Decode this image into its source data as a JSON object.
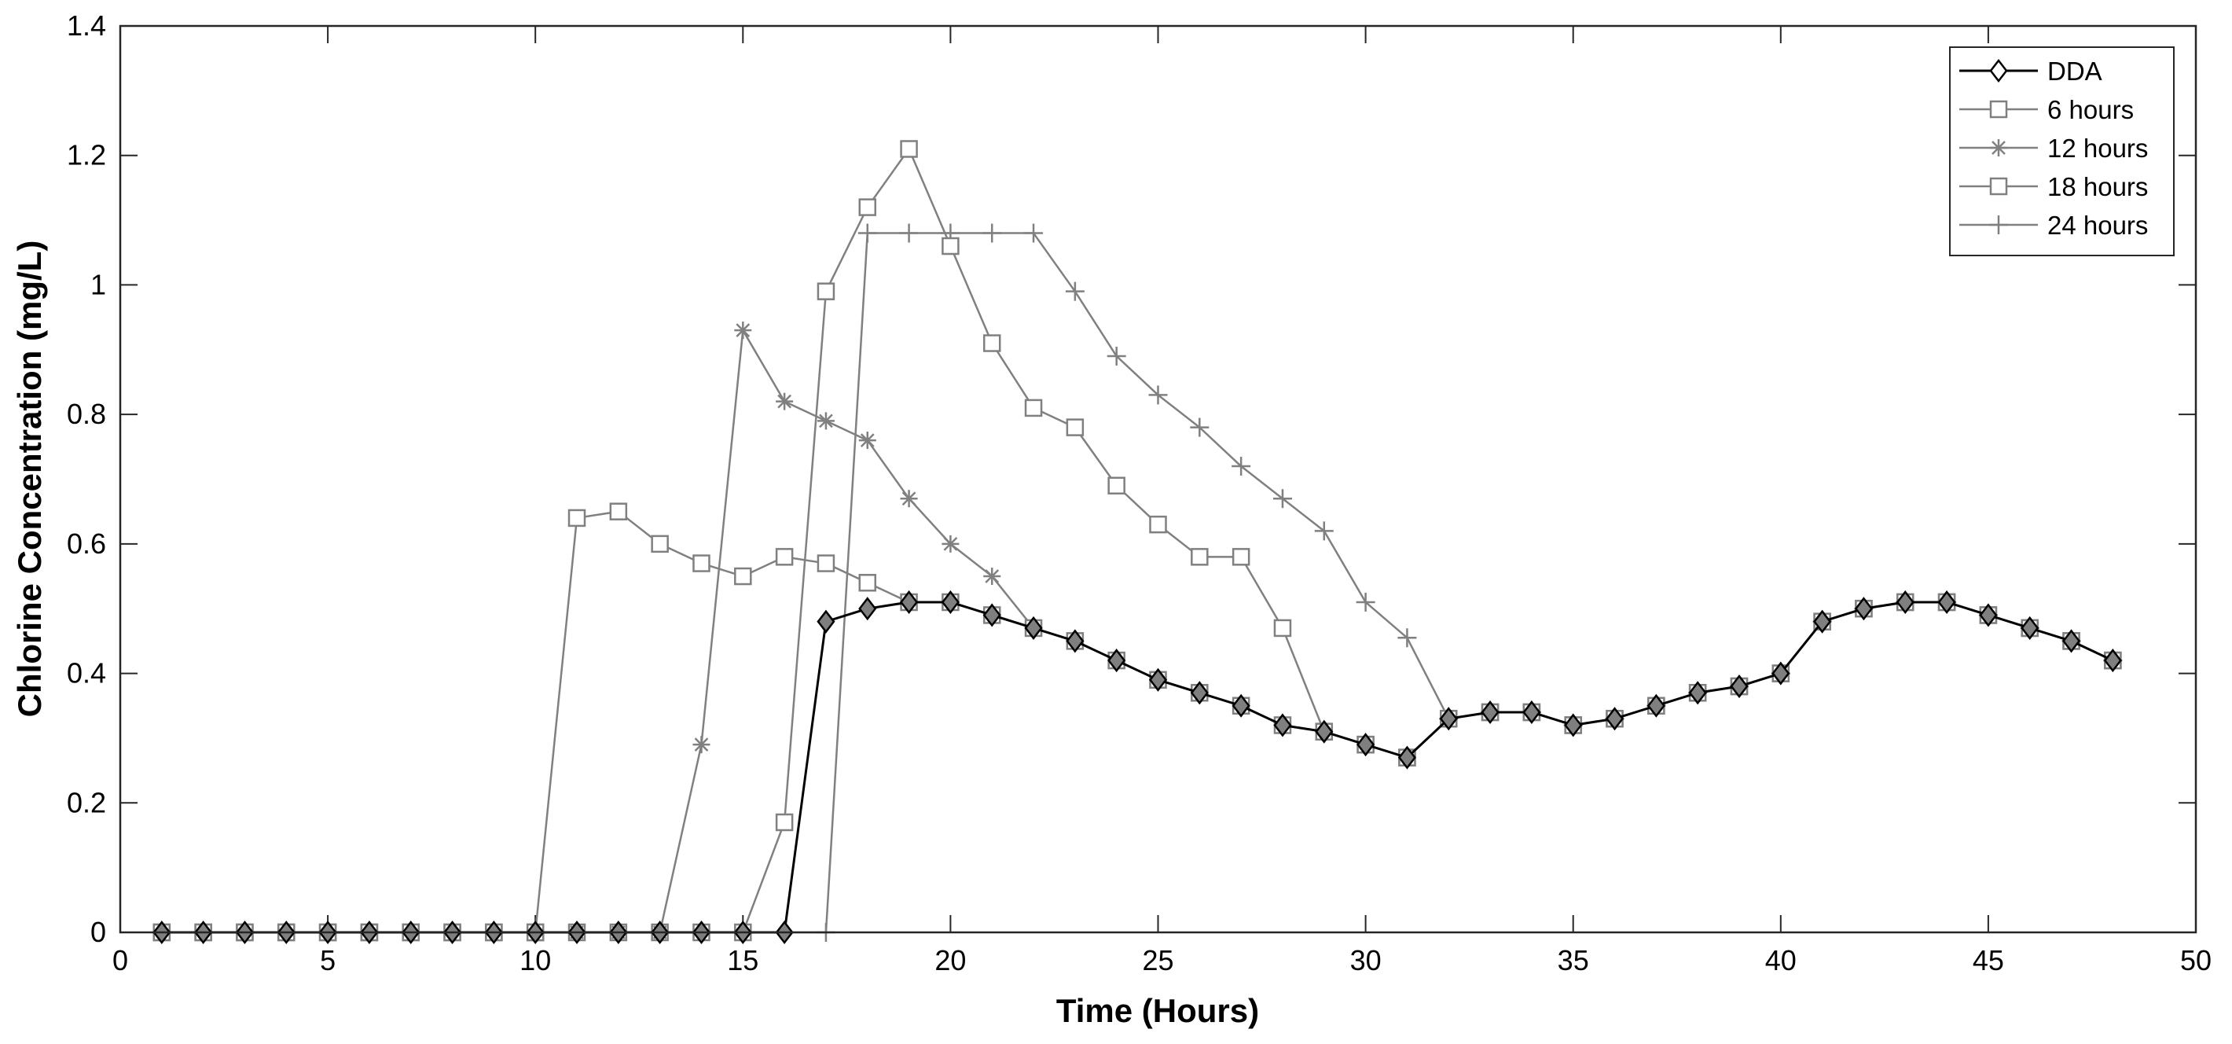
{
  "chart_data": {
    "type": "line",
    "title": "",
    "xlabel": "Time (Hours)",
    "ylabel": "Chlorine Concentration (mg/L)",
    "xlim": [
      0,
      50
    ],
    "ylim": [
      0,
      1.4
    ],
    "xticks": [
      0,
      5,
      10,
      15,
      20,
      25,
      30,
      35,
      40,
      45,
      50
    ],
    "xtick_labels": [
      "0",
      "5",
      "10",
      "15",
      "20",
      "25",
      "30",
      "35",
      "40",
      "45",
      "50"
    ],
    "yticks": [
      0,
      0.2,
      0.4,
      0.6,
      0.8,
      1.0,
      1.2,
      1.4
    ],
    "ytick_labels": [
      "0",
      "0.2",
      "0.4",
      "0.6",
      "0.8",
      "1",
      "1.2",
      "1.4"
    ],
    "grid": false,
    "legend_position": "top-right",
    "x": [
      1,
      2,
      3,
      4,
      5,
      6,
      7,
      8,
      9,
      10,
      11,
      12,
      13,
      14,
      15,
      16,
      17,
      18,
      19,
      20,
      21,
      22,
      23,
      24,
      25,
      26,
      27,
      28,
      29,
      30,
      31,
      32,
      33,
      34,
      35,
      36,
      37,
      38,
      39,
      40,
      41,
      42,
      43,
      44,
      45,
      46,
      47,
      48
    ],
    "series": [
      {
        "name": "DDA",
        "color": "#000000",
        "marker": "diamond",
        "values": [
          0,
          0,
          0,
          0,
          0,
          0,
          0,
          0,
          0,
          0,
          0,
          0,
          0,
          0,
          0,
          0,
          0.48,
          0.5,
          0.51,
          0.51,
          0.49,
          0.47,
          0.45,
          0.42,
          0.39,
          0.37,
          0.35,
          0.32,
          0.31,
          0.29,
          0.27,
          0.33,
          0.34,
          0.34,
          0.32,
          0.33,
          0.35,
          0.37,
          0.38,
          0.4,
          0.48,
          0.5,
          0.51,
          0.51,
          0.49,
          0.47,
          0.45,
          0.42
        ]
      },
      {
        "name": "6 hours",
        "color": "#808080",
        "marker": "square",
        "values": [
          0,
          0,
          0,
          0,
          0,
          0,
          0,
          0,
          0,
          0,
          0.64,
          0.65,
          0.6,
          0.57,
          0.55,
          0.58,
          0.57,
          0.54,
          0.51,
          0.51,
          0.49,
          0.47,
          0.45,
          0.42,
          0.39,
          0.37,
          0.35,
          0.32,
          0.31,
          0.29,
          0.27,
          0.33,
          0.34,
          0.34,
          0.32,
          0.33,
          0.35,
          0.37,
          0.38,
          0.4,
          0.48,
          0.5,
          0.51,
          0.51,
          0.49,
          0.47,
          0.45,
          0.42
        ]
      },
      {
        "name": "12 hours",
        "color": "#808080",
        "marker": "asterisk",
        "values": [
          0,
          0,
          0,
          0,
          0,
          0,
          0,
          0,
          0,
          0,
          0,
          0,
          0,
          0.29,
          0.93,
          0.82,
          0.79,
          0.76,
          0.67,
          0.6,
          0.55,
          0.47,
          0.45,
          0.42,
          0.39,
          0.37,
          0.35,
          0.32,
          0.31,
          0.29,
          0.27,
          0.33,
          0.34,
          0.34,
          0.32,
          0.33,
          0.35,
          0.37,
          0.38,
          0.4,
          0.48,
          0.5,
          0.51,
          0.51,
          0.49,
          0.47,
          0.45,
          0.42
        ]
      },
      {
        "name": "18 hours",
        "color": "#808080",
        "marker": "square",
        "values": [
          0,
          0,
          0,
          0,
          0,
          0,
          0,
          0,
          0,
          0,
          0,
          0,
          0,
          0,
          0,
          0.17,
          0.99,
          1.12,
          1.21,
          1.06,
          0.91,
          0.81,
          0.78,
          0.69,
          0.63,
          0.58,
          0.58,
          0.47,
          0.31,
          0.29,
          0.27,
          0.33,
          0.34,
          0.34,
          0.32,
          0.33,
          0.35,
          0.37,
          0.38,
          0.4,
          0.48,
          0.5,
          0.51,
          0.51,
          0.49,
          0.47,
          0.45,
          0.42
        ]
      },
      {
        "name": "24 hours",
        "color": "#808080",
        "marker": "plus",
        "values": [
          0,
          0,
          0,
          0,
          0,
          0,
          0,
          0,
          0,
          0,
          0,
          0,
          0,
          0,
          0,
          0,
          0,
          1.08,
          1.08,
          1.08,
          1.08,
          1.08,
          0.99,
          0.89,
          0.83,
          0.78,
          0.72,
          0.67,
          0.62,
          0.51,
          0.455,
          0.33,
          0.34,
          0.34,
          0.32,
          0.33,
          0.35,
          0.37,
          0.38,
          0.4,
          0.48,
          0.5,
          0.51,
          0.51,
          0.49,
          0.47,
          0.45,
          0.42
        ]
      }
    ],
    "draw_order": [
      4,
      3,
      2,
      1,
      0
    ]
  }
}
